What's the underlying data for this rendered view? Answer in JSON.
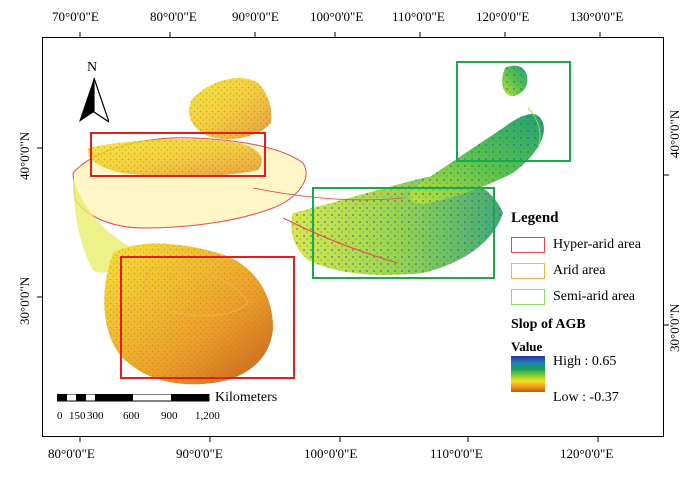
{
  "graticule": {
    "top_lon": [
      "70°0'0\"E",
      "80°0'0\"E",
      "90°0'0\"E",
      "100°0'0\"E",
      "110°0'0\"E",
      "120°0'0\"E",
      "130°0'0\"E"
    ],
    "bottom_lon": [
      "80°0'0\"E",
      "90°0'0\"E",
      "100°0'0\"E",
      "110°0'0\"E",
      "120°0'0\"E"
    ],
    "left_lat": [
      "40°0'0\"N",
      "30°0'0\"N"
    ],
    "right_lat": [
      "40°0'0\"N",
      "30°0'0\"N"
    ]
  },
  "north_arrow": {
    "label": "N"
  },
  "legend": {
    "title": "Legend",
    "zones": [
      {
        "label": "Hyper-arid area",
        "color": "#e84a4a"
      },
      {
        "label": "Arid area",
        "color": "#f0b24a"
      },
      {
        "label": "Semi-arid area",
        "color": "#8fd86a"
      }
    ],
    "layer_title": "Slop of AGB",
    "value_title": "Value",
    "high_label": "High : 0.65",
    "low_label": "Low : -0.37",
    "high_value": 0.65,
    "low_value": -0.37
  },
  "scale_bar": {
    "unit": "Kilometers",
    "ticks": [
      "0",
      "150",
      "300",
      "600",
      "900",
      "1,200"
    ]
  },
  "highlight_boxes": [
    {
      "name": "hyper-arid-north-box",
      "color": "#e02020"
    },
    {
      "name": "hyper-arid-south-box",
      "color": "#e02020"
    },
    {
      "name": "semi-arid-northeast-box",
      "color": "#1aa84a"
    },
    {
      "name": "semi-arid-central-box",
      "color": "#1aa84a"
    }
  ]
}
